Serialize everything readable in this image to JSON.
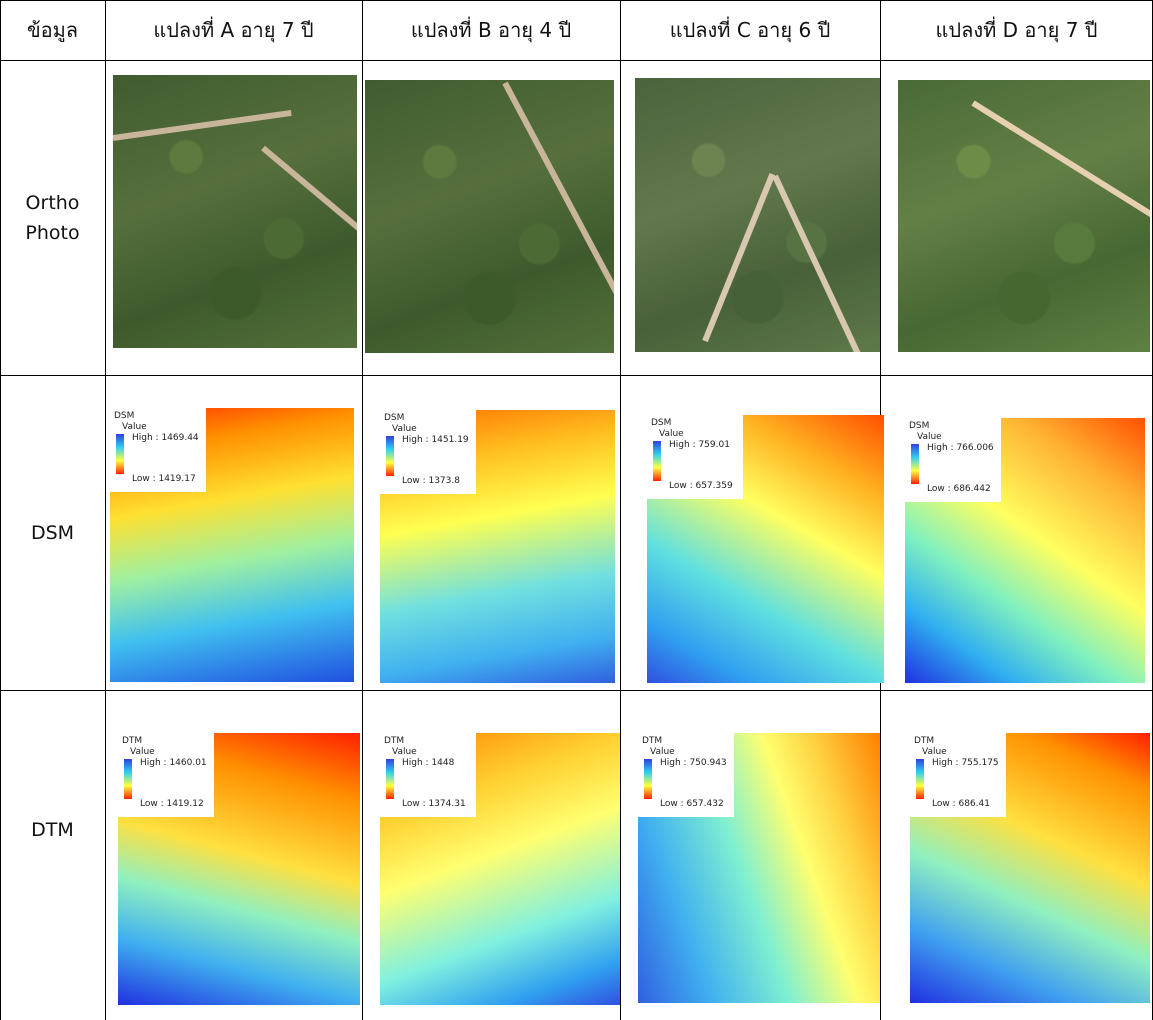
{
  "table": {
    "header": [
      "ข้อมูล",
      "แปลงที่ A อายุ 7 ปี",
      "แปลงที่ B อายุ 4 ปี",
      "แปลงที่ C อายุ 6 ปี",
      "แปลงที่ D อายุ 7 ปี"
    ],
    "rows": [
      {
        "label": [
          "Ortho",
          "Photo"
        ]
      },
      {
        "label": [
          "DSM"
        ],
        "cells": [
          {
            "title": "DSM",
            "field": "Value",
            "high": "High : 1469.44",
            "low": "Low : 1419.17"
          },
          {
            "title": "DSM",
            "field": "Value",
            "high": "High : 1451.19",
            "low": "Low : 1373.8"
          },
          {
            "title": "DSM",
            "field": "Value",
            "high": "High : 759.01",
            "low": "Low : 657.359"
          },
          {
            "title": "DSM",
            "field": "Value",
            "high": "High : 766.006",
            "low": "Low : 686.442"
          }
        ]
      },
      {
        "label": [
          "DTM"
        ],
        "cells": [
          {
            "title": "DTM",
            "field": "Value",
            "high": "High : 1460.01",
            "low": "Low : 1419.12"
          },
          {
            "title": "DTM",
            "field": "Value",
            "high": "High : 1448",
            "low": "Low : 1374.31"
          },
          {
            "title": "DTM",
            "field": "Value",
            "high": "High : 750.943",
            "low": "Low : 657.432"
          },
          {
            "title": "DTM",
            "field": "Value",
            "high": "High : 755.175",
            "low": "Low : 686.41"
          }
        ]
      }
    ]
  }
}
